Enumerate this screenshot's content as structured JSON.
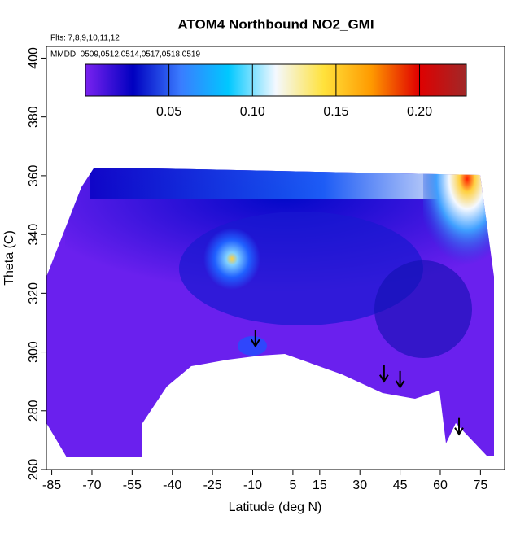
{
  "chart_data": {
    "type": "heatmap",
    "title": "ATOM4 Northbound NO2_GMI",
    "annotations": [
      "Flts: 7,8,9,10,11,12",
      "MMDD: 0509,0512,0514,0517,0518,0519"
    ],
    "xlabel": "Latitude (deg N)",
    "ylabel": "Theta (C)",
    "xlim": [
      -87,
      84
    ],
    "xticks": [
      -85,
      -70,
      -55,
      -40,
      -25,
      -10,
      5,
      15,
      30,
      45,
      60,
      75
    ],
    "ylim": [
      260,
      404
    ],
    "yticks": [
      260,
      280,
      300,
      320,
      340,
      360,
      380,
      400
    ],
    "colorbar": {
      "lim": [
        0,
        0.228
      ],
      "ticks": [
        {
          "value": 0.05,
          "label": "0.05"
        },
        {
          "value": 0.1,
          "label": "0.10"
        },
        {
          "value": 0.15,
          "label": "0.15"
        },
        {
          "value": 0.2,
          "label": "0.20"
        }
      ],
      "colors": [
        "#7a22f0",
        "#0000c0",
        "#3a7cff",
        "#00c8ff",
        "#f4f8ff",
        "#ffe23c",
        "#ff9a00",
        "#e00000",
        "#a02828"
      ]
    },
    "arrows": {
      "x": [
        -9,
        39,
        45,
        67
      ],
      "y": [
        302,
        290,
        288,
        272
      ]
    }
  }
}
